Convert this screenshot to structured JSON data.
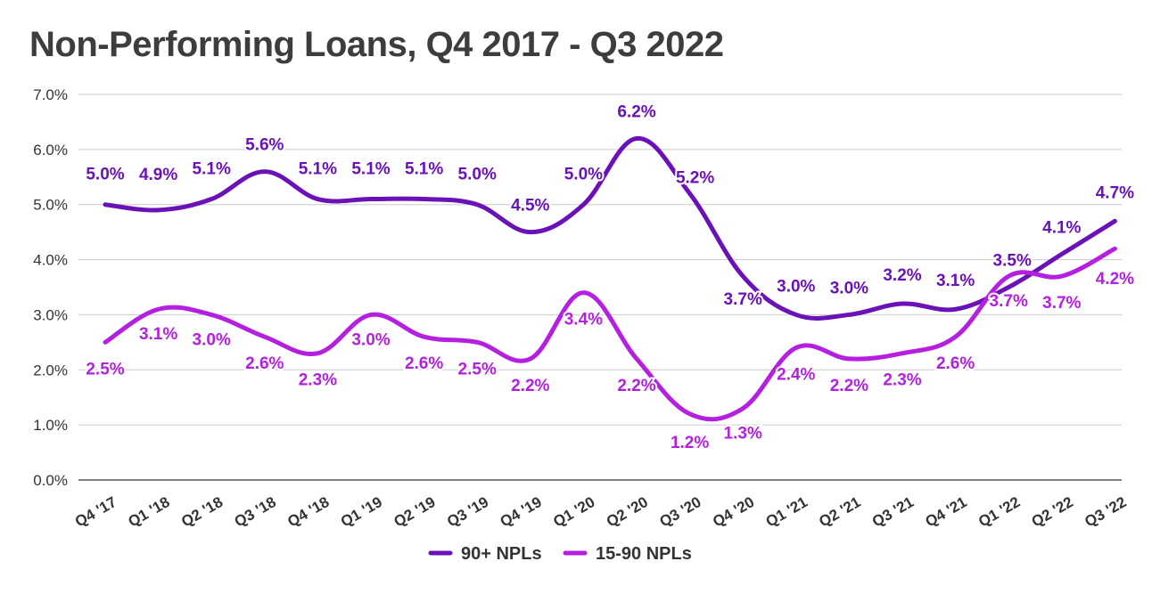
{
  "chart_data": {
    "type": "line",
    "title": "Non-Performing Loans, Q4 2017 - Q3 2022",
    "xlabel": "",
    "ylabel": "",
    "categories": [
      "Q4 '17",
      "Q1 '18",
      "Q2 '18",
      "Q3 '18",
      "Q4 '18",
      "Q1 '19",
      "Q2 '19",
      "Q3 '19",
      "Q4 '19",
      "Q1 '20",
      "Q2 '20",
      "Q3 '20",
      "Q4 '20",
      "Q1 '21",
      "Q2 '21",
      "Q3 '21",
      "Q4 '21",
      "Q1 '22",
      "Q2 '22",
      "Q3 '22"
    ],
    "ylim": [
      0,
      7
    ],
    "yticks": [
      "0.0%",
      "1.0%",
      "2.0%",
      "3.0%",
      "4.0%",
      "5.0%",
      "6.0%",
      "7.0%"
    ],
    "grid": true,
    "legend_position": "bottom",
    "series": [
      {
        "name": "90+ NPLs",
        "color": "#6a12b8",
        "values": [
          5.0,
          4.9,
          5.1,
          5.6,
          5.1,
          5.1,
          5.1,
          5.0,
          4.5,
          5.0,
          6.2,
          5.2,
          3.7,
          3.0,
          3.0,
          3.2,
          3.1,
          3.5,
          4.1,
          4.7
        ],
        "labels": [
          "5.0%",
          "4.9%",
          "5.1%",
          "5.6%",
          "5.1%",
          "5.1%",
          "5.1%",
          "5.0%",
          "4.5%",
          "5.0%",
          "6.2%",
          "5.2%",
          "3.7%",
          "3.0%",
          "3.0%",
          "3.2%",
          "3.1%",
          "3.5%",
          "4.1%",
          "4.7%"
        ]
      },
      {
        "name": "15-90 NPLs",
        "color": "#b41fe0",
        "values": [
          2.5,
          3.1,
          3.0,
          2.6,
          2.3,
          3.0,
          2.6,
          2.5,
          2.2,
          3.4,
          2.2,
          1.2,
          1.3,
          2.4,
          2.2,
          2.3,
          2.6,
          3.7,
          3.7,
          4.2
        ],
        "labels": [
          "2.5%",
          "3.1%",
          "3.0%",
          "2.6%",
          "2.3%",
          "3.0%",
          "2.6%",
          "2.5%",
          "2.2%",
          "3.4%",
          "2.2%",
          "1.2%",
          "1.3%",
          "2.4%",
          "2.2%",
          "2.3%",
          "2.6%",
          "3.7%",
          "3.7%",
          "4.2%"
        ]
      }
    ]
  }
}
